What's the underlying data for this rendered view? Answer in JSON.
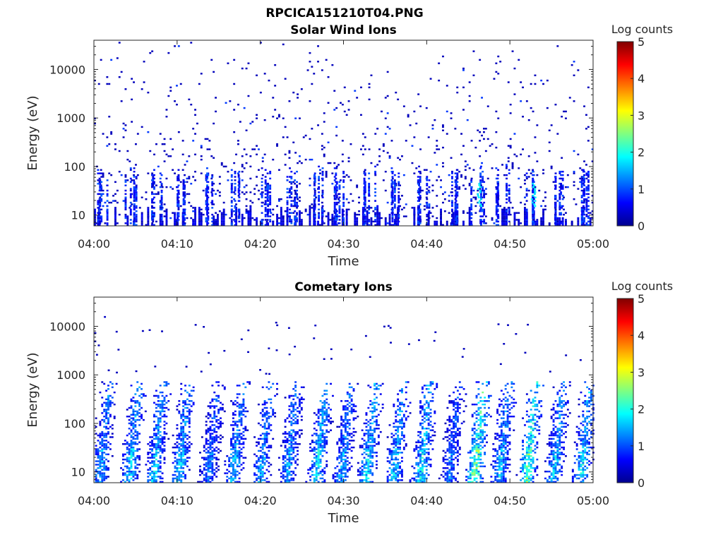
{
  "figure": {
    "title": "RPCICA151210T04.PNG"
  },
  "colormap": {
    "name": "jet",
    "stops": [
      "#00008f",
      "#0000ff",
      "#0080ff",
      "#00ffff",
      "#80ff80",
      "#ffff00",
      "#ff8000",
      "#ff0000",
      "#800000"
    ]
  },
  "chart_data": [
    {
      "type": "heatmap",
      "title": "Solar Wind Ions",
      "xlabel": "Time",
      "ylabel": "Energy (eV)",
      "x_ticks": [
        "04:00",
        "04:10",
        "04:20",
        "04:30",
        "04:40",
        "04:50",
        "05:00"
      ],
      "x_range_minutes": [
        0,
        60
      ],
      "y_scale": "log",
      "y_ticks": [
        10,
        100,
        1000,
        10000
      ],
      "y_tick_labels": [
        "10",
        "100",
        "1000",
        "10000"
      ],
      "y_range": [
        6,
        40000
      ],
      "colorbar": {
        "label": "Log counts",
        "range": [
          0,
          5
        ],
        "ticks": [
          "0",
          "1",
          "2",
          "3",
          "4",
          "5"
        ]
      },
      "data_description_minutes": {
        "scattered_counts_energy_range": [
          6,
          30000
        ],
        "low_energy_bursts_minutes": [
          0.8,
          4.3,
          7.5,
          10.5,
          14,
          17,
          20.3,
          23.5,
          26.8,
          29.5,
          33,
          36,
          39.5,
          43,
          46,
          49,
          52.5,
          55.5,
          59
        ],
        "peak_log_counts": 2
      }
    },
    {
      "type": "heatmap",
      "title": "Cometary Ions",
      "xlabel": "Time",
      "ylabel": "Energy (eV)",
      "x_ticks": [
        "04:00",
        "04:10",
        "04:20",
        "04:30",
        "04:40",
        "04:50",
        "05:00"
      ],
      "x_range_minutes": [
        0,
        60
      ],
      "y_scale": "log",
      "y_ticks": [
        10,
        100,
        1000,
        10000
      ],
      "y_tick_labels": [
        "10",
        "100",
        "1000",
        "10000"
      ],
      "y_range": [
        6,
        40000
      ],
      "colorbar": {
        "label": "Log counts",
        "range": [
          0,
          5
        ],
        "ticks": [
          "0",
          "1",
          "2",
          "3",
          "4",
          "5"
        ]
      },
      "data_description_minutes": {
        "burst_centers_minutes": [
          1,
          4.5,
          7.5,
          10.5,
          14,
          17,
          20.3,
          23.5,
          27,
          30,
          33,
          36.3,
          39.5,
          43,
          46,
          49,
          52.3,
          55.5,
          58.8
        ],
        "burst_energy_range": [
          6,
          700
        ],
        "burst_peak_log_counts": [
          1.8,
          2,
          2,
          2,
          1.5,
          2,
          1.8,
          1.8,
          2.2,
          1.8,
          2.2,
          2,
          2.3,
          1.5,
          3,
          2,
          2.8,
          2,
          2.2
        ],
        "sparse_high_energy_range": [
          1000,
          16000
        ]
      }
    }
  ]
}
